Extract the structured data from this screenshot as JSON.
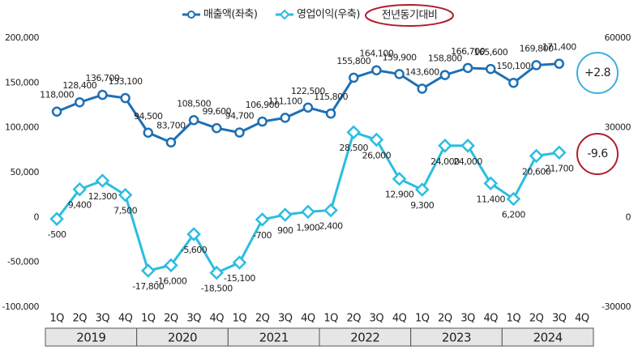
{
  "chart_data": {
    "type": "line",
    "legend_extra": "전년동기대비",
    "categories": [
      "1Q",
      "2Q",
      "3Q",
      "4Q",
      "1Q",
      "2Q",
      "3Q",
      "4Q",
      "1Q",
      "2Q",
      "3Q",
      "4Q",
      "1Q",
      "2Q",
      "3Q",
      "4Q",
      "1Q",
      "2Q",
      "3Q",
      "4Q",
      "1Q",
      "2Q",
      "3Q",
      "4Q"
    ],
    "years": [
      "2019",
      "2020",
      "2021",
      "2022",
      "2023",
      "2024"
    ],
    "series": [
      {
        "name": "매출액(좌축)",
        "color": "#1f6fb4",
        "marker": "circle",
        "values": [
          118000,
          128400,
          136700,
          133100,
          94500,
          83700,
          108500,
          99600,
          94700,
          106900,
          111100,
          122500,
          115800,
          155800,
          164100,
          159900,
          143600,
          158800,
          166700,
          165600,
          150100,
          169800,
          171400,
          null
        ],
        "value_labels": [
          "118,000",
          "128,400",
          "136,700",
          "133,100",
          "94,500",
          "83,700",
          "108,500",
          "99,600",
          "94,700",
          "106,900",
          "111,100",
          "122,500",
          "115,800",
          "155,800",
          "164,100",
          "159,900",
          "143,600",
          "158,800",
          "166,700",
          "165,600",
          "150,100",
          "169,800",
          "171,400",
          null
        ]
      },
      {
        "name": "영업이익(우축)",
        "color": "#2bbde0",
        "marker": "diamond",
        "axis": "y2",
        "values": [
          -500,
          9400,
          12300,
          7500,
          -17800,
          -16000,
          -5600,
          -18500,
          -15100,
          -700,
          900,
          1900,
          2400,
          28500,
          26000,
          12900,
          9300,
          24000,
          24000,
          11400,
          6200,
          20600,
          21700,
          null
        ],
        "value_labels": [
          "-500",
          "9,400",
          "12,300",
          "7,500",
          "-17,800",
          "-16,000",
          "-5,600",
          "-18,500",
          "-15,100",
          "-700",
          "900",
          "1,900",
          "2,400",
          "28,500",
          "26,000",
          "12,900",
          "9,300",
          "24,000",
          "24,000",
          "11,400",
          "6,200",
          "20,600",
          "21,700",
          null
        ]
      }
    ],
    "ylim": [
      -100000,
      200000
    ],
    "yticks": [
      {
        "value": -100000,
        "label": "-100,000"
      },
      {
        "value": -50000,
        "label": "-50,000"
      },
      0,
      {
        "value": 50000,
        "label": "50,000"
      },
      {
        "value": 100000,
        "label": "100,000"
      },
      {
        "value": 150000,
        "label": "150,000"
      },
      {
        "value": 200000,
        "label": "200,000"
      }
    ],
    "y2lim": [
      -30000,
      60000
    ],
    "y2ticks": [
      -30000,
      0,
      30000,
      60000
    ],
    "annotations": [
      {
        "text": "+2.8",
        "color": "#3bb0e0"
      },
      {
        "text": "-9.6",
        "color": "#b01e2a"
      }
    ]
  }
}
